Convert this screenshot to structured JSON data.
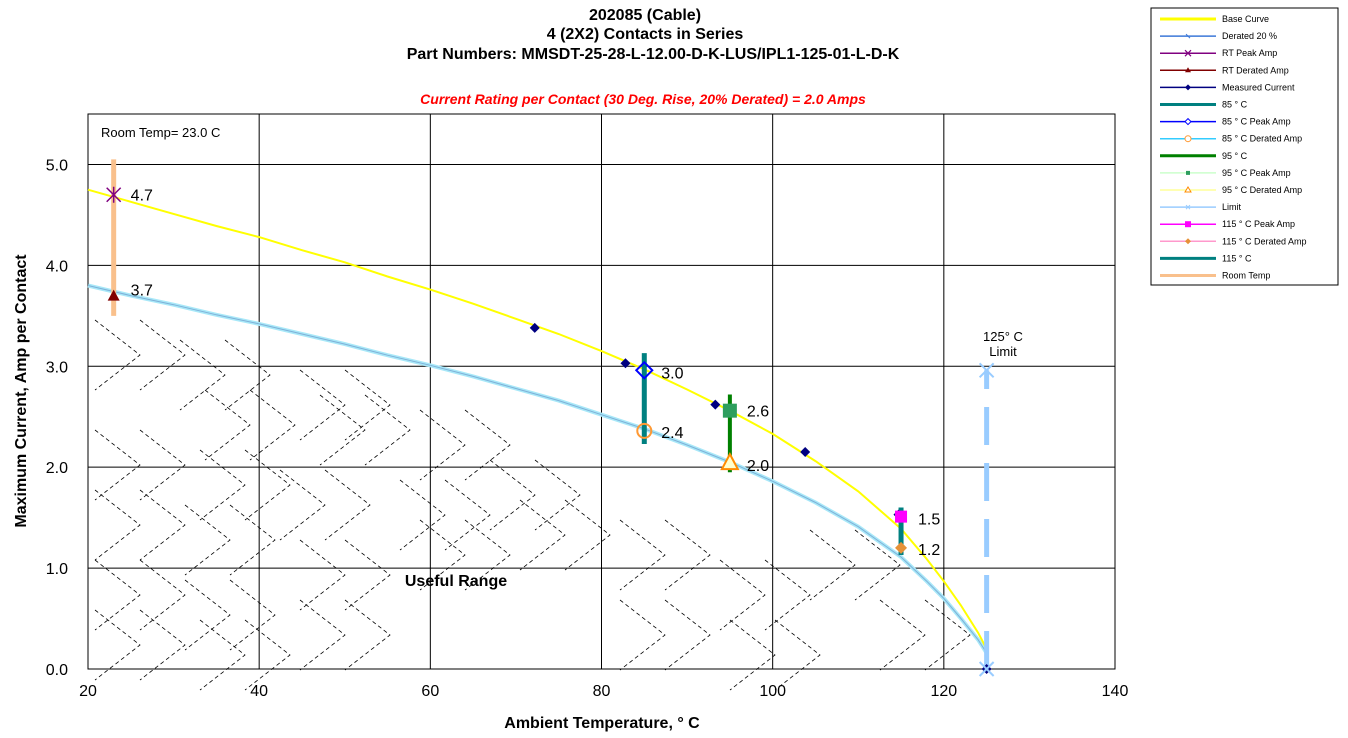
{
  "chart_data": {
    "type": "line",
    "title_lines": [
      "202085 (Cable)",
      "4 (2X2) Contacts  in Series",
      "Part Numbers:  MMSDT-25-28-L-12.00-D-K-LUS/IPL1-125-01-L-D-K"
    ],
    "subtitle": "Current Rating per Contact (30 Deg. Rise, 20% Derated)  = 2.0 Amps",
    "xlabel": "Ambient Temperature,  ° C",
    "ylabel": "Maximum Current, Amp per Contact",
    "xlim": [
      20,
      140
    ],
    "ylim": [
      0,
      5.5
    ],
    "x_ticks": [
      "20",
      "40",
      "60",
      "80",
      "100",
      "120",
      "140"
    ],
    "y_ticks": [
      "0.0",
      "1.0",
      "2.0",
      "3.0",
      "4.0",
      "5.0"
    ],
    "grid": true,
    "legend_position": "top-right",
    "room_temp_label": "Room Temp= 23.0 C",
    "limit_label_lines": [
      "125° C",
      "Limit"
    ],
    "useful_range_label": "Useful Range",
    "colors": {
      "base": "#ffff00",
      "derated": "#3c78d8",
      "derated_light": "#a8e8f8",
      "measured": "#000080",
      "c85": "#008080",
      "c95": "#008000",
      "c115": "#008080",
      "limit": "#99ccff",
      "room": "#f9c08c",
      "subtitle": "#ff0000"
    },
    "series": [
      {
        "name": "Base Curve",
        "x": [
          20,
          25,
          30,
          35,
          40,
          45,
          50,
          55,
          60,
          65,
          70,
          75,
          80,
          85,
          90,
          95,
          100,
          105,
          110,
          115,
          118,
          120,
          122,
          124,
          125
        ],
        "y": [
          4.75,
          4.63,
          4.51,
          4.39,
          4.28,
          4.15,
          4.03,
          3.89,
          3.76,
          3.62,
          3.47,
          3.32,
          3.15,
          2.97,
          2.77,
          2.56,
          2.33,
          2.06,
          1.76,
          1.39,
          1.09,
          0.87,
          0.63,
          0.36,
          0.2
        ]
      },
      {
        "name": "Derated 20 %",
        "x": [
          20,
          25,
          30,
          35,
          40,
          45,
          50,
          55,
          60,
          65,
          70,
          75,
          80,
          85,
          90,
          95,
          100,
          105,
          110,
          115,
          118,
          120,
          122,
          124,
          125
        ],
        "y": [
          3.8,
          3.7,
          3.61,
          3.51,
          3.42,
          3.32,
          3.22,
          3.11,
          3.01,
          2.9,
          2.78,
          2.66,
          2.52,
          2.38,
          2.22,
          2.05,
          1.86,
          1.65,
          1.41,
          1.11,
          0.87,
          0.7,
          0.5,
          0.29,
          0.16
        ]
      },
      {
        "name": "RT Peak Amp",
        "x": [
          23
        ],
        "y": [
          4.7
        ]
      },
      {
        "name": "RT Derated Amp",
        "x": [
          23
        ],
        "y": [
          3.7
        ]
      },
      {
        "name": "Measured Current",
        "x": [
          72.2,
          82.8,
          93.3,
          103.8,
          114.7,
          125
        ],
        "y": [
          3.38,
          3.03,
          2.62,
          2.15,
          1.53,
          0.0
        ]
      },
      {
        "name": "85 ° C",
        "x": [
          85,
          85
        ],
        "y": [
          2.23,
          3.13
        ]
      },
      {
        "name": "85  ° C Peak Amp",
        "x": [
          85
        ],
        "y": [
          2.96
        ]
      },
      {
        "name": "85  ° C Derated Amp",
        "x": [
          85
        ],
        "y": [
          2.36
        ]
      },
      {
        "name": "95  ° C",
        "x": [
          95,
          95
        ],
        "y": [
          1.95,
          2.72
        ]
      },
      {
        "name": "95  ° C Peak Amp",
        "x": [
          95
        ],
        "y": [
          2.56
        ]
      },
      {
        "name": "95  ° C Derated Amp",
        "x": [
          95
        ],
        "y": [
          2.04
        ]
      },
      {
        "name": "Limit",
        "x": [
          125,
          125
        ],
        "y": [
          0,
          2.96
        ]
      },
      {
        "name": "115  ° C Peak Amp",
        "x": [
          115
        ],
        "y": [
          1.51
        ]
      },
      {
        "name": "115  ° C Derated Amp",
        "x": [
          115
        ],
        "y": [
          1.2
        ]
      },
      {
        "name": "115  ° C",
        "x": [
          115,
          115
        ],
        "y": [
          1.13,
          1.6
        ]
      },
      {
        "name": "Room Temp",
        "x": [
          23,
          23
        ],
        "y": [
          3.5,
          5.05
        ]
      }
    ],
    "data_labels": [
      {
        "x": 23,
        "y": 4.7,
        "text": "4.7"
      },
      {
        "x": 23,
        "y": 3.76,
        "text": "3.7"
      },
      {
        "x": 85,
        "y": 2.94,
        "text": "3.0"
      },
      {
        "x": 85,
        "y": 2.35,
        "text": "2.4"
      },
      {
        "x": 95,
        "y": 2.56,
        "text": "2.6"
      },
      {
        "x": 95,
        "y": 2.02,
        "text": "2.0"
      },
      {
        "x": 115,
        "y": 1.49,
        "text": "1.5"
      },
      {
        "x": 115,
        "y": 1.19,
        "text": "1.2"
      }
    ],
    "legend": [
      {
        "label": "Base Curve",
        "color": "#ffff00",
        "marker": "none"
      },
      {
        "label": "Derated 20 %",
        "color": "#3c78d8",
        "marker": "dash"
      },
      {
        "label": "RT Peak Amp",
        "color": "#800080",
        "marker": "star"
      },
      {
        "label": "RT Derated Amp",
        "color": "#800000",
        "marker": "triangle"
      },
      {
        "label": "Measured Current",
        "color": "#000080",
        "marker": "diamond"
      },
      {
        "label": "85 ° C",
        "color": "#008080",
        "marker": "none"
      },
      {
        "label": "85  ° C Peak Amp",
        "color": "#0000ff",
        "marker": "open-diamond"
      },
      {
        "label": "85  ° C Derated Amp",
        "color": "#33ccff",
        "marker": "open-circle"
      },
      {
        "label": "95  ° C",
        "color": "#008000",
        "marker": "none"
      },
      {
        "label": "95  ° C Peak Amp",
        "color": "#ccffcc",
        "marker": "square"
      },
      {
        "label": "95  ° C Derated Amp",
        "color": "#ffff99",
        "marker": "open-triangle"
      },
      {
        "label": "Limit",
        "color": "#99ccff",
        "marker": "x"
      },
      {
        "label": "115  ° C Peak Amp",
        "color": "#ff00ff",
        "marker": "square-magenta"
      },
      {
        "label": "115  ° C Derated Amp",
        "color": "#ff99cc",
        "marker": "diamond-orange"
      },
      {
        "label": "115  ° C",
        "color": "#008080",
        "marker": "none"
      },
      {
        "label": "Room Temp",
        "color": "#f9c08c",
        "marker": "none"
      }
    ]
  }
}
